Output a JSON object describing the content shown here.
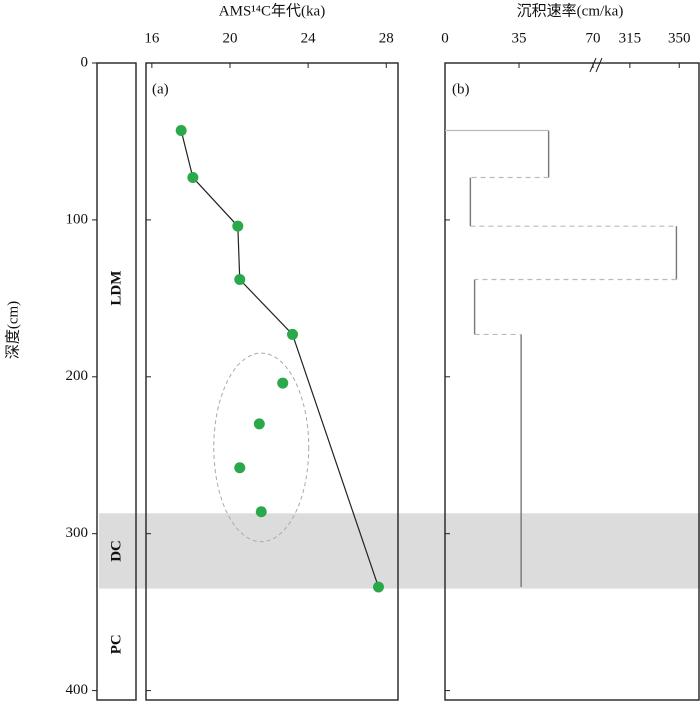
{
  "chart_data": [
    {
      "type": "scatter",
      "label": "(a)",
      "xlabel": "AMS¹⁴C年代(ka)",
      "xlim": [
        15.7,
        28.6
      ],
      "xticks": [
        16,
        20,
        24,
        28
      ],
      "ylabel": "深度(cm)",
      "ylim": [
        0,
        406
      ],
      "yticks": [
        0,
        100,
        200,
        300,
        400
      ],
      "color": "#2aa84a",
      "points": {
        "age": [
          17.5,
          18.1,
          20.4,
          20.5,
          23.2,
          27.6
        ],
        "depth": [
          43,
          73,
          104,
          138,
          173,
          334
        ]
      },
      "outliers": {
        "age": [
          22.7,
          21.5,
          20.5,
          21.6
        ],
        "depth": [
          204,
          230,
          258,
          286
        ]
      },
      "zones": [
        {
          "label": "LDM",
          "range": [
            0,
            287
          ]
        },
        {
          "label": "DC",
          "range": [
            287,
            335
          ]
        },
        {
          "label": "PC",
          "range": [
            335,
            406
          ]
        }
      ],
      "shaded_zone": 1
    },
    {
      "type": "step",
      "label": "(b)",
      "xlabel": "沉积速率(cm/ka)",
      "xlim": [
        [
          0,
          71.4
        ],
        [
          291,
          364
        ]
      ],
      "xticks": [
        0,
        35,
        70,
        315,
        350
      ],
      "top": [
        43,
        73,
        104,
        138,
        173
      ],
      "bottom": [
        73,
        104,
        138,
        173,
        334
      ],
      "values": [
        49,
        12,
        348,
        14,
        36
      ],
      "color": "#777777"
    }
  ]
}
